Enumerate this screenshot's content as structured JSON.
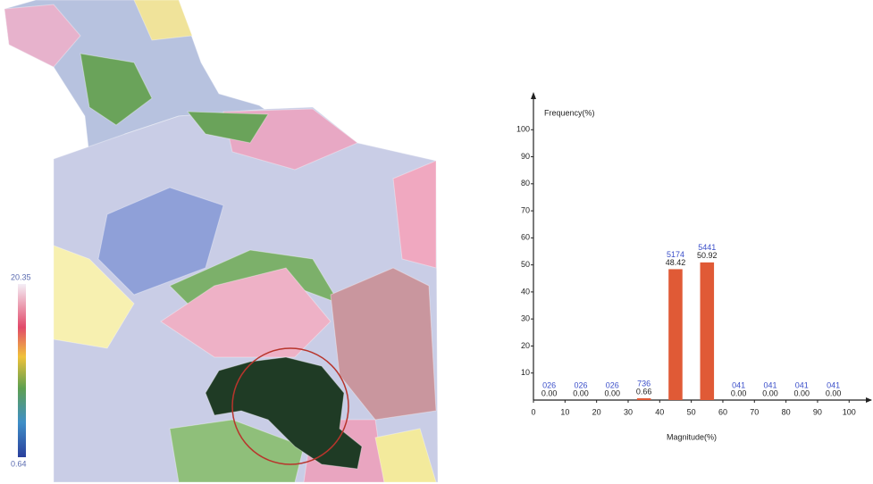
{
  "chart_data": {
    "type": "histogram",
    "x_label": "Magnitude(%)",
    "y_label": "Frequency(%)",
    "bins": [
      0,
      10,
      20,
      30,
      40,
      50,
      60,
      70,
      80,
      90,
      100
    ],
    "values": [
      0,
      0,
      0,
      0.66,
      48.42,
      50.92,
      0,
      0,
      0,
      0
    ],
    "value_labels": [
      "0.00",
      "0.00",
      "0.00",
      "0.66",
      "48.42",
      "50.92",
      "0.00",
      "0.00",
      "0.00",
      "0.00"
    ],
    "count_labels": [
      "026",
      "026",
      "026",
      "736",
      "5174",
      "5441",
      "041",
      "041",
      "041",
      "041"
    ],
    "color": "#e05a36",
    "count_color": "#3b4fc9",
    "xlim": [
      0,
      107
    ],
    "ylim": [
      0,
      110
    ],
    "xticks": [
      0,
      10,
      20,
      30,
      40,
      50,
      60,
      70,
      80,
      90,
      100
    ],
    "yticks": [
      10,
      20,
      30,
      40,
      50,
      60,
      70,
      80,
      90,
      100
    ],
    "colorbar": {
      "range": [
        0.64,
        20.35
      ]
    }
  }
}
